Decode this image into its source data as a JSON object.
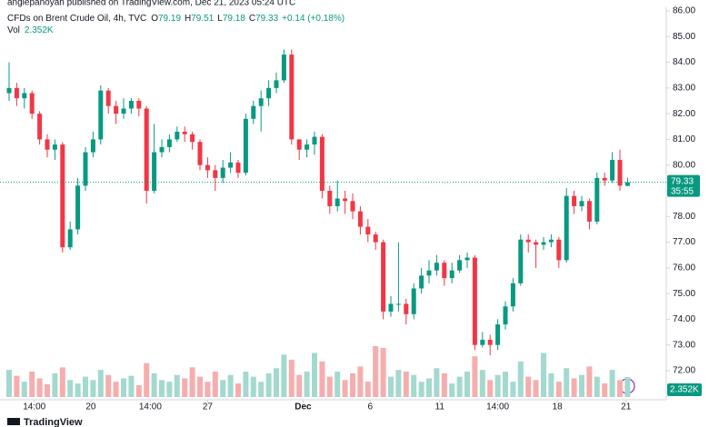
{
  "header": {
    "author_line": "anglepanoyan published on TradingView.com, Dec 21, 2023 05:24 UTC",
    "legend_keys": [
      "O",
      "H",
      "L",
      "C"
    ],
    "change": "+0.14 (+0.18%)",
    "vol_key": "Vol",
    "vol_value": "2.352K",
    "countdown": "35:55",
    "logo": "TradingView"
  },
  "chart_data": {
    "type": "candlestick",
    "title": "CFDs on Brent Crude Oil, 4h, TVC",
    "up_color": "#089981",
    "down_color": "#f23645",
    "volume_up_color": "#a3d9cf",
    "volume_down_color": "#f7adad",
    "ylim": [
      71.6,
      86.0
    ],
    "yticks": [
      {
        "value": 72,
        "label": "72.00"
      },
      {
        "value": 73,
        "label": "73.00"
      },
      {
        "value": 74,
        "label": "74.00"
      },
      {
        "value": 75,
        "label": "75.00"
      },
      {
        "value": 76,
        "label": "76.00"
      },
      {
        "value": 77,
        "label": "77.00"
      },
      {
        "value": 78,
        "label": "78.00"
      },
      {
        "value": 79,
        "label": "79.00"
      },
      {
        "value": 80,
        "label": "80.00"
      },
      {
        "value": 81,
        "label": "81.00"
      },
      {
        "value": 82,
        "label": "82.00"
      },
      {
        "value": 83,
        "label": "83.00"
      },
      {
        "value": 84,
        "label": "84.00"
      },
      {
        "value": 85,
        "label": "85.00"
      },
      {
        "value": 86,
        "label": "86.00"
      }
    ],
    "volume_ylim": [
      0,
      7.5
    ],
    "xticks": [
      {
        "value": 3.3,
        "label": "14:00"
      },
      {
        "value": 10.7,
        "label": "20"
      },
      {
        "value": 18.5,
        "label": "14:00"
      },
      {
        "value": 26,
        "label": "27"
      },
      {
        "value": 38.5,
        "label": "Dec"
      },
      {
        "value": 47.3,
        "label": "6"
      },
      {
        "value": 56.4,
        "label": "11"
      },
      {
        "value": 64,
        "label": "14:00"
      },
      {
        "value": 71.8,
        "label": "18"
      },
      {
        "value": 80.8,
        "label": "21"
      }
    ],
    "open": [
      82.8,
      83.0,
      82.6,
      82.8,
      82.0,
      81.0,
      80.6,
      80.8,
      76.8,
      77.5,
      79.2,
      80.5,
      81.0,
      82.9,
      82.3,
      82.0,
      82.2,
      82.5,
      82.2,
      79.0,
      80.5,
      80.7,
      81.0,
      81.3,
      81.2,
      80.9,
      80.0,
      79.8,
      79.5,
      79.9,
      80.1,
      79.7,
      81.8,
      82.3,
      82.6,
      83.0,
      83.3,
      84.3,
      81.0,
      80.6,
      80.8,
      81.1,
      79.0,
      78.4,
      78.7,
      78.6,
      78.2,
      77.6,
      77.3,
      77.0,
      74.3,
      74.6,
      74.6,
      74.2,
      75.2,
      75.7,
      75.9,
      76.2,
      75.6,
      75.9,
      76.3,
      76.4,
      73.0,
      73.2,
      73.0,
      73.8,
      74.5,
      75.4,
      77.1,
      77.0,
      76.9,
      77.0,
      77.1,
      76.3,
      78.8,
      78.4,
      78.6,
      77.8,
      79.5,
      79.4,
      80.2,
      79.19
    ],
    "high": [
      84.0,
      83.2,
      83.0,
      82.9,
      82.1,
      81.2,
      81.0,
      80.9,
      77.8,
      79.5,
      80.7,
      81.3,
      83.1,
      83.0,
      82.5,
      82.6,
      82.6,
      82.6,
      82.3,
      81.6,
      81.0,
      81.2,
      81.5,
      81.5,
      81.3,
      81.0,
      80.3,
      80.0,
      80.2,
      80.5,
      80.2,
      82.0,
      82.5,
      82.9,
      83.3,
      83.6,
      84.5,
      84.5,
      81.0,
      81.0,
      81.3,
      81.2,
      79.2,
      79.4,
      79.0,
      78.9,
      78.4,
      77.9,
      77.4,
      77.1,
      74.9,
      77.0,
      74.8,
      75.4,
      76.0,
      76.3,
      76.5,
      76.3,
      76.2,
      76.5,
      76.6,
      76.5,
      73.5,
      73.4,
      74.0,
      74.7,
      75.6,
      77.3,
      77.3,
      77.1,
      77.2,
      77.3,
      77.2,
      79.1,
      79.0,
      78.8,
      78.7,
      79.7,
      79.7,
      80.5,
      80.6,
      79.51
    ],
    "low": [
      82.5,
      82.3,
      82.2,
      81.8,
      80.8,
      80.3,
      80.2,
      76.6,
      76.7,
      77.3,
      79.0,
      80.3,
      80.8,
      82.0,
      81.6,
      81.8,
      82.0,
      81.9,
      78.5,
      78.9,
      80.3,
      80.5,
      80.9,
      80.9,
      80.6,
      79.8,
      79.5,
      79.0,
      79.3,
      79.7,
      79.5,
      79.6,
      81.6,
      81.3,
      82.3,
      82.8,
      83.2,
      80.8,
      80.2,
      80.3,
      80.4,
      78.7,
      78.1,
      78.2,
      78.1,
      77.9,
      77.3,
      77.0,
      76.7,
      74.0,
      74.1,
      74.3,
      73.8,
      74.0,
      75.0,
      75.4,
      75.7,
      75.3,
      75.4,
      75.8,
      76.0,
      72.8,
      72.9,
      72.6,
      72.8,
      73.6,
      74.3,
      75.3,
      76.6,
      76.0,
      76.7,
      76.8,
      76.0,
      76.2,
      78.1,
      78.2,
      77.5,
      77.7,
      79.2,
      79.3,
      79.0,
      79.18
    ],
    "close": [
      83.0,
      82.6,
      82.8,
      82.0,
      81.0,
      80.6,
      80.8,
      76.8,
      77.5,
      79.2,
      80.5,
      81.0,
      82.9,
      82.3,
      82.0,
      82.2,
      82.5,
      82.2,
      79.0,
      80.5,
      80.7,
      81.0,
      81.3,
      81.2,
      80.9,
      80.0,
      79.8,
      79.5,
      79.9,
      80.1,
      79.7,
      81.8,
      82.3,
      82.6,
      83.0,
      83.3,
      84.3,
      81.0,
      80.6,
      80.8,
      81.1,
      79.0,
      78.4,
      78.7,
      78.6,
      78.2,
      77.6,
      77.3,
      77.0,
      74.3,
      74.6,
      74.6,
      74.2,
      75.2,
      75.7,
      75.9,
      76.2,
      75.6,
      75.9,
      76.3,
      76.4,
      73.0,
      73.2,
      73.0,
      73.8,
      74.5,
      75.4,
      77.1,
      77.0,
      76.9,
      77.0,
      77.1,
      76.3,
      78.8,
      78.4,
      78.6,
      77.8,
      79.5,
      79.4,
      80.2,
      79.2,
      79.33
    ],
    "volume": [
      3.2,
      2.5,
      1.8,
      3.0,
      2.2,
      1.5,
      2.8,
      3.5,
      2.0,
      1.6,
      2.4,
      2.0,
      3.2,
      2.6,
      1.8,
      2.2,
      2.5,
      1.4,
      4.0,
      2.8,
      2.0,
      1.8,
      2.6,
      2.2,
      3.5,
      2.4,
      1.8,
      3.0,
      2.0,
      2.6,
      1.6,
      3.0,
      2.4,
      1.8,
      2.8,
      3.4,
      5.0,
      4.4,
      2.6,
      3.0,
      5.2,
      4.2,
      2.4,
      3.0,
      2.0,
      2.8,
      3.6,
      1.8,
      6.0,
      5.8,
      2.4,
      3.2,
      3.0,
      2.6,
      1.8,
      2.2,
      3.4,
      2.8,
      1.6,
      2.4,
      3.0,
      4.8,
      3.2,
      2.0,
      2.6,
      3.0,
      1.8,
      4.2,
      2.4,
      2.0,
      5.2,
      2.8,
      1.8,
      3.4,
      2.2,
      2.6,
      3.6,
      2.4,
      1.6,
      3.2,
      2.0,
      2.352
    ]
  }
}
